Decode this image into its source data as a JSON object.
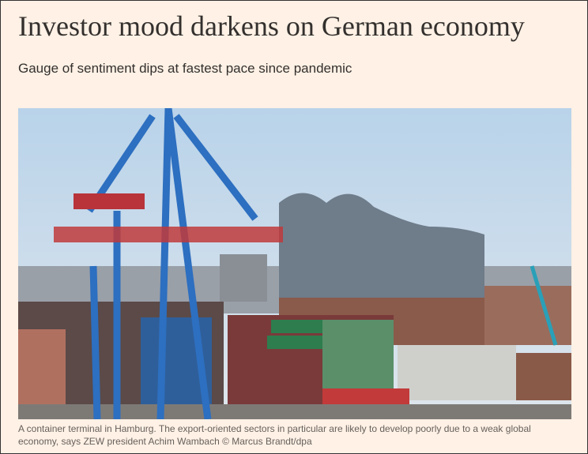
{
  "header": {
    "title": "Investor mood darkens on German economy",
    "subtitle": "Gauge of sentiment dips at fastest pace since pandemic"
  },
  "image": {
    "caption": "A container terminal in Hamburg. The export-oriented sectors in particular are likely to develop poorly due to a weak global economy, says ZEW president Achim Wambach © Marcus Brandt/dpa"
  }
}
